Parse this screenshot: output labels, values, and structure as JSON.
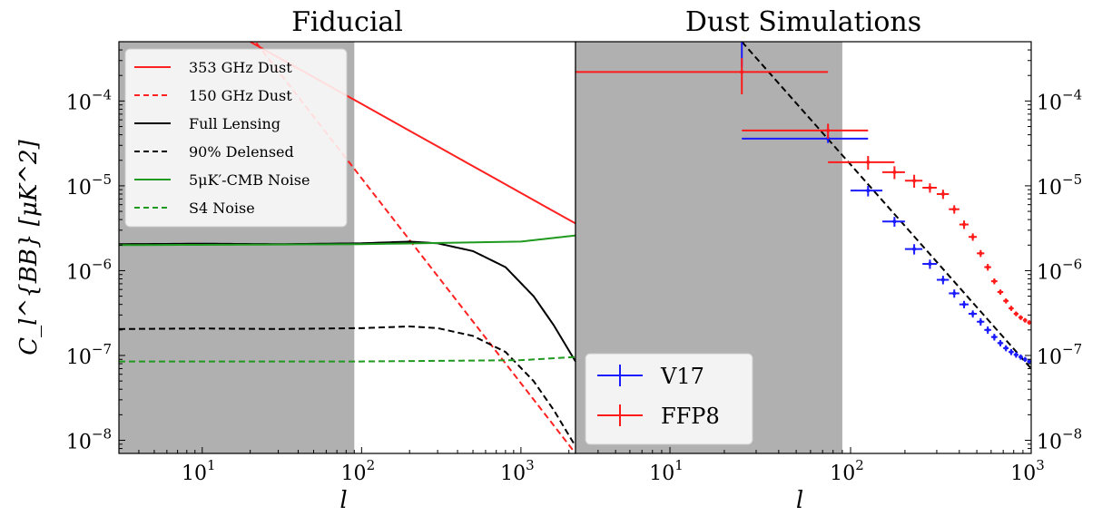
{
  "colors": {
    "dust_red": "#ff2020",
    "noise_green": "#1f9a1f",
    "lensing_black": "#000000",
    "v17_blue": "#1a1aff",
    "ffp8_red": "#ff1a1a",
    "shade": "#b0b0b0"
  },
  "chart_data": [
    {
      "type": "line",
      "title": "Fiducial",
      "xlabel": "l",
      "ylabel": "C_l^{BB} [μK^2]",
      "x_scale": "log",
      "y_scale": "log",
      "xlim": [
        3,
        2200
      ],
      "ylim": [
        7e-09,
        0.0005
      ],
      "shaded_region": [
        3,
        90
      ],
      "x_ticks": [
        {
          "base": "10",
          "exp": "1"
        },
        {
          "base": "10",
          "exp": "2"
        },
        {
          "base": "10",
          "exp": "3"
        }
      ],
      "y_ticks": [
        {
          "base": "10",
          "exp": "−8"
        },
        {
          "base": "10",
          "exp": "−7"
        },
        {
          "base": "10",
          "exp": "−6"
        },
        {
          "base": "10",
          "exp": "−5"
        },
        {
          "base": "10",
          "exp": "−4"
        }
      ],
      "legend_position": "top-left",
      "series": [
        {
          "name": "353 GHz Dust",
          "style": "solid",
          "color": "#ff2020",
          "points": [
            [
              20,
              0.0005
            ],
            [
              2200,
              3.6e-06
            ]
          ]
        },
        {
          "name": "150 GHz Dust",
          "style": "dashed",
          "color": "#ff2020",
          "points": [
            [
              20,
              0.0006
            ],
            [
              2200,
              7e-09
            ]
          ]
        },
        {
          "name": "Full Lensing",
          "style": "solid",
          "color": "#000000",
          "points": [
            [
              3,
              2.05e-06
            ],
            [
              10,
              2.08e-06
            ],
            [
              30,
              2.05e-06
            ],
            [
              100,
              2.1e-06
            ],
            [
              200,
              2.2e-06
            ],
            [
              300,
              2.1e-06
            ],
            [
              500,
              1.7e-06
            ],
            [
              800,
              1.1e-06
            ],
            [
              1200,
              5e-07
            ],
            [
              1600,
              2.3e-07
            ],
            [
              2200,
              8.5e-08
            ]
          ]
        },
        {
          "name": "90% Delensed",
          "style": "dashed",
          "color": "#000000",
          "points": [
            [
              3,
              2.05e-07
            ],
            [
              10,
              2.08e-07
            ],
            [
              30,
              2.05e-07
            ],
            [
              100,
              2.1e-07
            ],
            [
              200,
              2.2e-07
            ],
            [
              300,
              2.1e-07
            ],
            [
              500,
              1.7e-07
            ],
            [
              800,
              1.1e-07
            ],
            [
              1200,
              5e-08
            ],
            [
              1600,
              2.3e-08
            ],
            [
              2200,
              8.5e-09
            ]
          ]
        },
        {
          "name": "5μK′-CMB Noise",
          "style": "solid",
          "color": "#1f9a1f",
          "points": [
            [
              3,
              2e-06
            ],
            [
              100,
              2.05e-06
            ],
            [
              1000,
              2.2e-06
            ],
            [
              2200,
              2.6e-06
            ]
          ]
        },
        {
          "name": "S4 Noise",
          "style": "dashed",
          "color": "#1f9a1f",
          "points": [
            [
              3,
              8.5e-08
            ],
            [
              100,
              8.5e-08
            ],
            [
              1000,
              8.8e-08
            ],
            [
              2200,
              9.6e-08
            ]
          ]
        }
      ]
    },
    {
      "type": "scatter",
      "title": "Dust Simulations",
      "xlabel": "l",
      "ylabel": "",
      "x_scale": "log",
      "y_scale": "log",
      "xlim": [
        3,
        1000
      ],
      "ylim": [
        7e-09,
        0.0005
      ],
      "shaded_region": [
        3,
        90
      ],
      "x_ticks": [
        {
          "base": "10",
          "exp": "1"
        },
        {
          "base": "10",
          "exp": "2"
        },
        {
          "base": "10",
          "exp": "3"
        }
      ],
      "y_ticks": [
        {
          "base": "10",
          "exp": "−8"
        },
        {
          "base": "10",
          "exp": "−7"
        },
        {
          "base": "10",
          "exp": "−6"
        },
        {
          "base": "10",
          "exp": "−5"
        },
        {
          "base": "10",
          "exp": "−4"
        }
      ],
      "y_axis_side": "right",
      "legend_position": "bottom-left",
      "reference_line": {
        "style": "dashed",
        "color": "#000000",
        "points": [
          [
            25,
            0.0005
          ],
          [
            1000,
            7e-08
          ]
        ]
      },
      "series": [
        {
          "name": "V17",
          "color": "#1a1aff",
          "points": [
            {
              "x": 25,
              "y": 0.00055,
              "xerr": [
                3,
                75
              ],
              "yerr": [
                0.00025,
                0.0009
              ]
            },
            {
              "x": 75,
              "y": 3.6e-05,
              "xerr": [
                25,
                125
              ],
              "yerr": [
                3.2e-05,
                4e-05
              ]
            },
            {
              "x": 125,
              "y": 8.8e-06,
              "xerr": [
                100,
                150
              ],
              "yerr": [
                7.5e-06,
                1e-05
              ]
            },
            {
              "x": 175,
              "y": 3.8e-06,
              "xerr": [
                150,
                200
              ],
              "yerr": [
                3.3e-06,
                4.3e-06
              ]
            },
            {
              "x": 225,
              "y": 1.8e-06,
              "xerr": [
                200,
                250
              ],
              "yerr": [
                1.55e-06,
                2.05e-06
              ]
            },
            {
              "x": 275,
              "y": 1.2e-06,
              "xerr": [
                250,
                300
              ],
              "yerr": [
                1.05e-06,
                1.35e-06
              ]
            },
            {
              "x": 325,
              "y": 7.8e-07,
              "xerr": [
                300,
                350
              ],
              "yerr": [
                6.9e-07,
                8.7e-07
              ]
            },
            {
              "x": 375,
              "y": 5.4e-07,
              "xerr": [
                350,
                400
              ],
              "yerr": [
                4.8e-07,
                6e-07
              ]
            },
            {
              "x": 425,
              "y": 4e-07,
              "xerr": [
                400,
                450
              ],
              "yerr": [
                3.6e-07,
                4.4e-07
              ]
            },
            {
              "x": 475,
              "y": 3.1e-07,
              "xerr": [
                450,
                500
              ],
              "yerr": [
                2.8e-07,
                3.4e-07
              ]
            },
            {
              "x": 525,
              "y": 2.5e-07,
              "xerr": [
                500,
                550
              ],
              "yerr": [
                2.25e-07,
                2.75e-07
              ]
            },
            {
              "x": 575,
              "y": 2e-07,
              "xerr": [
                550,
                600
              ],
              "yerr": [
                1.8e-07,
                2.2e-07
              ]
            },
            {
              "x": 625,
              "y": 1.65e-07,
              "xerr": [
                600,
                650
              ],
              "yerr": [
                1.5e-07,
                1.8e-07
              ]
            },
            {
              "x": 675,
              "y": 1.4e-07,
              "xerr": [
                650,
                700
              ],
              "yerr": [
                1.28e-07,
                1.52e-07
              ]
            },
            {
              "x": 725,
              "y": 1.22e-07,
              "xerr": [
                700,
                750
              ],
              "yerr": [
                1.12e-07,
                1.32e-07
              ]
            },
            {
              "x": 775,
              "y": 1.1e-07,
              "xerr": [
                750,
                800
              ],
              "yerr": [
                1.01e-07,
                1.19e-07
              ]
            },
            {
              "x": 825,
              "y": 1.02e-07,
              "xerr": [
                800,
                850
              ],
              "yerr": [
                9.4e-08,
                1.1e-07
              ]
            },
            {
              "x": 875,
              "y": 9.6e-08,
              "xerr": [
                850,
                900
              ],
              "yerr": [
                8.9e-08,
                1.03e-07
              ]
            },
            {
              "x": 925,
              "y": 9e-08,
              "xerr": [
                900,
                950
              ],
              "yerr": [
                8.4e-08,
                9.6e-08
              ]
            },
            {
              "x": 975,
              "y": 8.5e-08,
              "xerr": [
                950,
                1000
              ],
              "yerr": [
                7.9e-08,
                9.1e-08
              ]
            }
          ]
        },
        {
          "name": "FFP8",
          "color": "#ff1a1a",
          "points": [
            {
              "x": 25,
              "y": 0.00022,
              "xerr": [
                3,
                75
              ],
              "yerr": [
                0.00012,
                0.00032
              ]
            },
            {
              "x": 75,
              "y": 4.5e-05,
              "xerr": [
                25,
                125
              ],
              "yerr": [
                3.6e-05,
                5.4e-05
              ]
            },
            {
              "x": 125,
              "y": 1.9e-05,
              "xerr": [
                75,
                175
              ],
              "yerr": [
                1.55e-05,
                2.25e-05
              ]
            },
            {
              "x": 175,
              "y": 1.45e-05,
              "xerr": [
                150,
                200
              ],
              "yerr": [
                1.2e-05,
                1.7e-05
              ]
            },
            {
              "x": 225,
              "y": 1.15e-05,
              "xerr": [
                200,
                250
              ],
              "yerr": [
                9.5e-06,
                1.35e-05
              ]
            },
            {
              "x": 275,
              "y": 9.5e-06,
              "xerr": [
                250,
                300
              ],
              "yerr": [
                8.3e-06,
                1.07e-05
              ]
            },
            {
              "x": 325,
              "y": 8e-06,
              "xerr": [
                300,
                350
              ],
              "yerr": [
                7e-06,
                9e-06
              ]
            },
            {
              "x": 375,
              "y": 5.3e-06,
              "xerr": [
                350,
                400
              ],
              "yerr": [
                4.7e-06,
                5.9e-06
              ]
            },
            {
              "x": 425,
              "y": 3.5e-06,
              "xerr": [
                400,
                450
              ],
              "yerr": [
                3.1e-06,
                3.9e-06
              ]
            },
            {
              "x": 475,
              "y": 2.5e-06,
              "xerr": [
                450,
                500
              ],
              "yerr": [
                2.25e-06,
                2.75e-06
              ]
            },
            {
              "x": 525,
              "y": 1.6e-06,
              "xerr": [
                500,
                550
              ],
              "yerr": [
                1.45e-06,
                1.75e-06
              ]
            },
            {
              "x": 575,
              "y": 1.1e-06,
              "xerr": [
                550,
                600
              ],
              "yerr": [
                1e-06,
                1.2e-06
              ]
            },
            {
              "x": 625,
              "y": 7.5e-07,
              "xerr": [
                600,
                650
              ],
              "yerr": [
                6.9e-07,
                8.1e-07
              ]
            },
            {
              "x": 675,
              "y": 5.6e-07,
              "xerr": [
                650,
                700
              ],
              "yerr": [
                5.2e-07,
                6e-07
              ]
            },
            {
              "x": 725,
              "y": 4.4e-07,
              "xerr": [
                700,
                750
              ],
              "yerr": [
                4.1e-07,
                4.7e-07
              ]
            },
            {
              "x": 775,
              "y": 3.6e-07,
              "xerr": [
                750,
                800
              ],
              "yerr": [
                3.35e-07,
                3.85e-07
              ]
            },
            {
              "x": 825,
              "y": 3.1e-07,
              "xerr": [
                800,
                850
              ],
              "yerr": [
                2.9e-07,
                3.3e-07
              ]
            },
            {
              "x": 875,
              "y": 2.8e-07,
              "xerr": [
                850,
                900
              ],
              "yerr": [
                2.62e-07,
                2.98e-07
              ]
            },
            {
              "x": 925,
              "y": 2.6e-07,
              "xerr": [
                900,
                950
              ],
              "yerr": [
                2.44e-07,
                2.76e-07
              ]
            },
            {
              "x": 975,
              "y": 2.45e-07,
              "xerr": [
                950,
                1000
              ],
              "yerr": [
                2.3e-07,
                2.6e-07
              ]
            }
          ]
        }
      ]
    }
  ]
}
